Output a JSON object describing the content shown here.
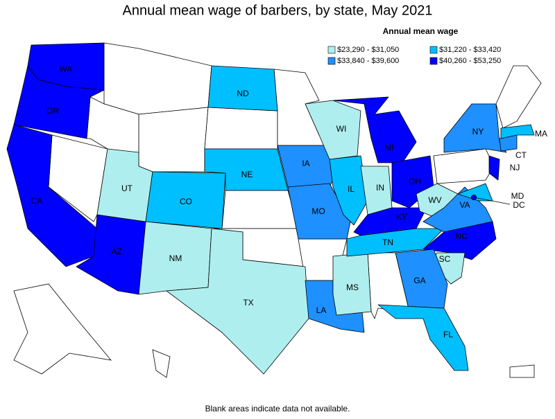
{
  "title": "Annual mean wage of barbers, by state, May 2021",
  "legend": {
    "title": "Annual mean wage",
    "items": [
      {
        "label": "$23,290 - $31,050",
        "color": "#afeeee"
      },
      {
        "label": "$31,220 - $33,420",
        "color": "#00bfff"
      },
      {
        "label": "$33,840 - $39,600",
        "color": "#1e90ff"
      },
      {
        "label": "$40,260 - $53,250",
        "color": "#0000ff"
      }
    ]
  },
  "states": [
    {
      "label": "WA",
      "color": "#0000ff"
    },
    {
      "label": "OR",
      "color": "#0000ff"
    },
    {
      "label": "CA",
      "color": "#0000ff"
    },
    {
      "label": "AZ",
      "color": "#0000ff"
    },
    {
      "label": "UT",
      "color": "#afeeee"
    },
    {
      "label": "CO",
      "color": "#00bfff"
    },
    {
      "label": "NM",
      "color": "#afeeee"
    },
    {
      "label": "TX",
      "color": "#afeeee"
    },
    {
      "label": "ND",
      "color": "#00bfff"
    },
    {
      "label": "NE",
      "color": "#00bfff"
    },
    {
      "label": "IA",
      "color": "#1e90ff"
    },
    {
      "label": "MO",
      "color": "#1e90ff"
    },
    {
      "label": "LA",
      "color": "#1e90ff"
    },
    {
      "label": "MS",
      "color": "#afeeee"
    },
    {
      "label": "IL",
      "color": "#00bfff"
    },
    {
      "label": "WI",
      "color": "#afeeee"
    },
    {
      "label": "IN",
      "color": "#afeeee"
    },
    {
      "label": "MI",
      "color": "#0000ff"
    },
    {
      "label": "OH",
      "color": "#0000ff"
    },
    {
      "label": "KY",
      "color": "#0000ff"
    },
    {
      "label": "TN",
      "color": "#00bfff"
    },
    {
      "label": "WV",
      "color": "#afeeee"
    },
    {
      "label": "VA",
      "color": "#1e90ff"
    },
    {
      "label": "NC",
      "color": "#0000ff"
    },
    {
      "label": "SC",
      "color": "#afeeee"
    },
    {
      "label": "GA",
      "color": "#1e90ff"
    },
    {
      "label": "FL",
      "color": "#00bfff"
    },
    {
      "label": "NY",
      "color": "#1e90ff"
    },
    {
      "label": "NJ",
      "color": "#0000ff"
    },
    {
      "label": "CT",
      "color": "#1e90ff"
    },
    {
      "label": "MA",
      "color": "#00bfff"
    },
    {
      "label": "MD",
      "color": "#00bfff"
    },
    {
      "label": "DC",
      "color": "#0000ff"
    }
  ],
  "note": "Blank areas indicate data not available."
}
